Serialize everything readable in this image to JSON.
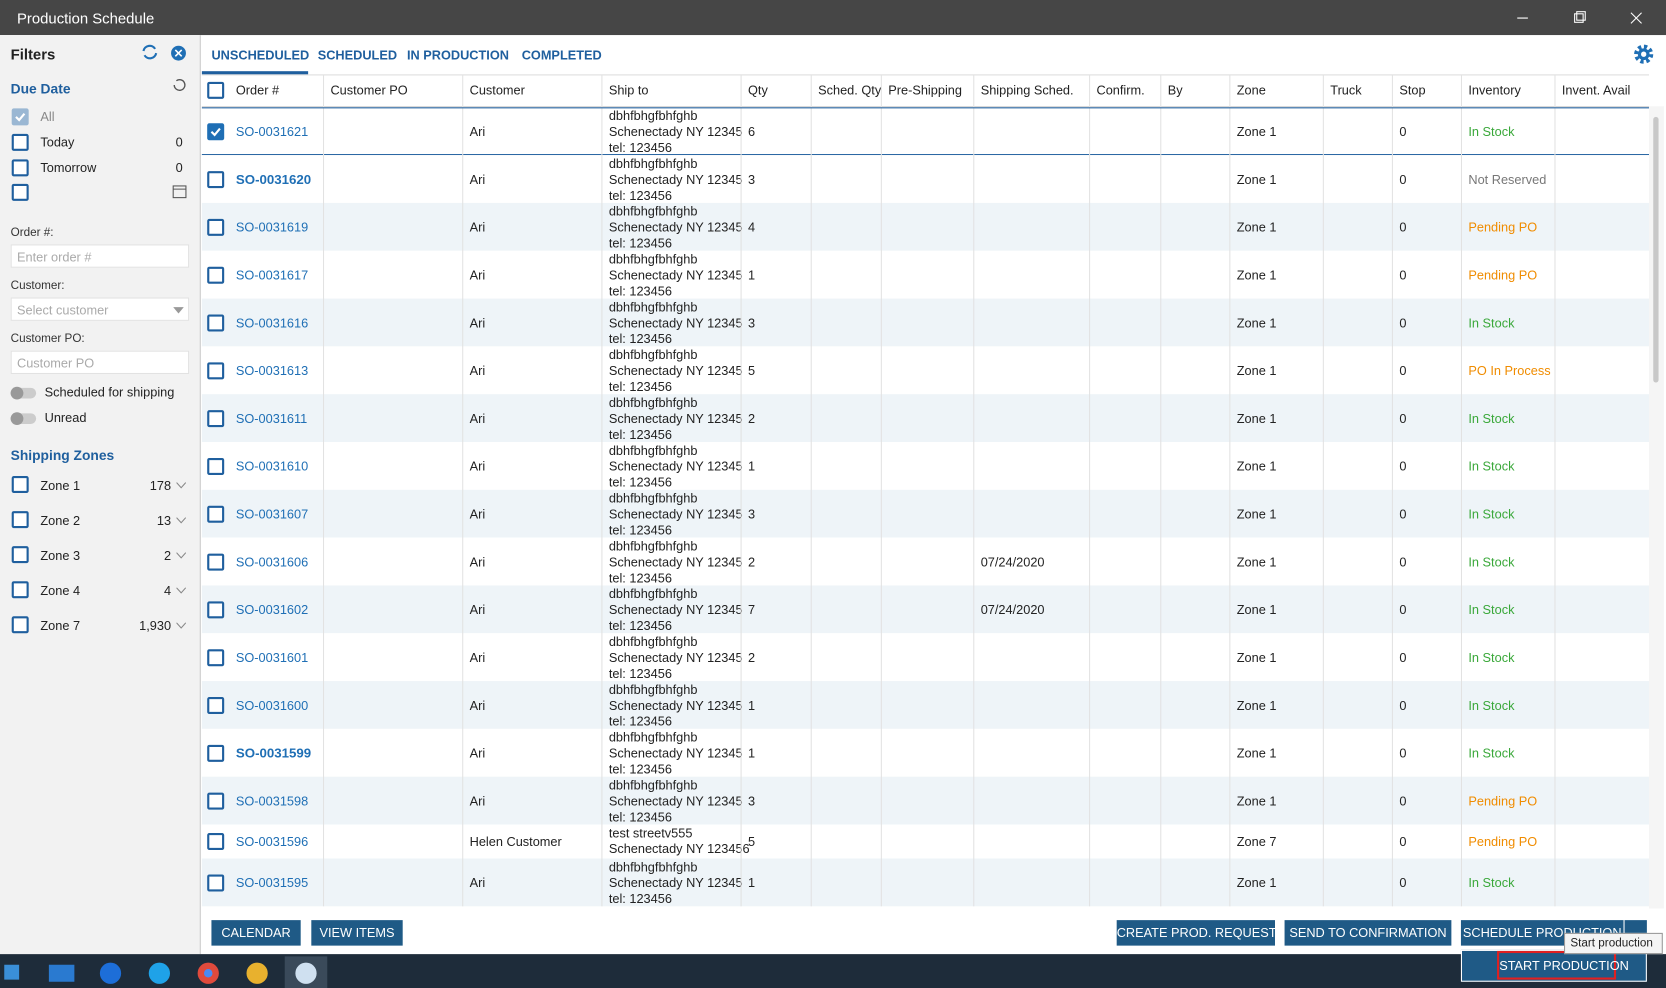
{
  "window": {
    "title": "Production Schedule"
  },
  "filters": {
    "title": "Filters",
    "due_date": {
      "title": "Due Date",
      "options": [
        {
          "label": "All",
          "checked": true
        },
        {
          "label": "Today",
          "count": "0"
        },
        {
          "label": "Tomorrow",
          "count": "0"
        }
      ]
    },
    "order_label": "Order #:",
    "order_placeholder": "Enter order #",
    "customer_label": "Customer:",
    "customer_placeholder": "Select customer",
    "po_label": "Customer PO:",
    "po_placeholder": "Customer PO",
    "toggles": [
      "Scheduled for shipping",
      "Unread"
    ],
    "zones_title": "Shipping Zones",
    "zones": [
      {
        "name": "Zone 1",
        "count": "178"
      },
      {
        "name": "Zone 2",
        "count": "13"
      },
      {
        "name": "Zone 3",
        "count": "2"
      },
      {
        "name": "Zone 4",
        "count": "4"
      },
      {
        "name": "Zone 7",
        "count": "1,930"
      }
    ]
  },
  "tabs": [
    "UNSCHEDULED",
    "SCHEDULED",
    "IN PRODUCTION",
    "COMPLETED"
  ],
  "table": {
    "columns": [
      "Order #",
      "Customer PO",
      "Customer",
      "Ship to",
      "Qty",
      "Sched. Qty",
      "Pre-Shipping",
      "Shipping Sched.",
      "Confirm.",
      "By",
      "Zone",
      "Truck",
      "Stop",
      "Inventory",
      "Invent. Avail"
    ],
    "rows": [
      {
        "order": "SO-0031621",
        "customer": "Ari",
        "ship_to": [
          "dbhfbhgfbhfghb",
          "Schenectady NY 12345",
          "tel: 123456"
        ],
        "qty": "6",
        "zone": "Zone 1",
        "stop": "0",
        "inventory": "In Stock",
        "inventory_color": "#3aa83a",
        "checked": true
      },
      {
        "order": "SO-0031620",
        "customer": "Ari",
        "ship_to": [
          "dbhfbhgfbhfghb",
          "Schenectady NY 12345",
          "tel: 123456"
        ],
        "qty": "3",
        "zone": "Zone 1",
        "stop": "0",
        "inventory": "Not Reserved",
        "inventory_color": "#777777",
        "bold": true
      },
      {
        "order": "SO-0031619",
        "customer": "Ari",
        "ship_to": [
          "dbhfbhgfbhfghb",
          "Schenectady NY 12345",
          "tel: 123456"
        ],
        "qty": "4",
        "zone": "Zone 1",
        "stop": "0",
        "inventory": "Pending PO",
        "inventory_color": "#f08c00"
      },
      {
        "order": "SO-0031617",
        "customer": "Ari",
        "ship_to": [
          "dbhfbhgfbhfghb",
          "Schenectady NY 12345",
          "tel: 123456"
        ],
        "qty": "1",
        "zone": "Zone 1",
        "stop": "0",
        "inventory": "Pending PO",
        "inventory_color": "#f08c00"
      },
      {
        "order": "SO-0031616",
        "customer": "Ari",
        "ship_to": [
          "dbhfbhgfbhfghb",
          "Schenectady NY 12345",
          "tel: 123456"
        ],
        "qty": "3",
        "zone": "Zone 1",
        "stop": "0",
        "inventory": "In Stock",
        "inventory_color": "#3aa83a"
      },
      {
        "order": "SO-0031613",
        "customer": "Ari",
        "ship_to": [
          "dbhfbhgfbhfghb",
          "Schenectady NY 12345",
          "tel: 123456"
        ],
        "qty": "5",
        "zone": "Zone 1",
        "stop": "0",
        "inventory": "PO In Process",
        "inventory_color": "#f08c00"
      },
      {
        "order": "SO-0031611",
        "customer": "Ari",
        "ship_to": [
          "dbhfbhgfbhfghb",
          "Schenectady NY 12345",
          "tel: 123456"
        ],
        "qty": "2",
        "zone": "Zone 1",
        "stop": "0",
        "inventory": "In Stock",
        "inventory_color": "#3aa83a"
      },
      {
        "order": "SO-0031610",
        "customer": "Ari",
        "ship_to": [
          "dbhfbhgfbhfghb",
          "Schenectady NY 12345",
          "tel: 123456"
        ],
        "qty": "1",
        "zone": "Zone 1",
        "stop": "0",
        "inventory": "In Stock",
        "inventory_color": "#3aa83a"
      },
      {
        "order": "SO-0031607",
        "customer": "Ari",
        "ship_to": [
          "dbhfbhgfbhfghb",
          "Schenectady NY 12345",
          "tel: 123456"
        ],
        "qty": "3",
        "zone": "Zone 1",
        "stop": "0",
        "inventory": "In Stock",
        "inventory_color": "#3aa83a"
      },
      {
        "order": "SO-0031606",
        "customer": "Ari",
        "ship_to": [
          "dbhfbhgfbhfghb",
          "Schenectady NY 12345",
          "tel: 123456"
        ],
        "qty": "2",
        "shipping_sched": "07/24/2020",
        "zone": "Zone 1",
        "stop": "0",
        "inventory": "In Stock",
        "inventory_color": "#3aa83a"
      },
      {
        "order": "SO-0031602",
        "customer": "Ari",
        "ship_to": [
          "dbhfbhgfbhfghb",
          "Schenectady NY 12345",
          "tel: 123456"
        ],
        "qty": "7",
        "shipping_sched": "07/24/2020",
        "zone": "Zone 1",
        "stop": "0",
        "inventory": "In Stock",
        "inventory_color": "#3aa83a"
      },
      {
        "order": "SO-0031601",
        "customer": "Ari",
        "ship_to": [
          "dbhfbhgfbhfghb",
          "Schenectady NY 12345",
          "tel: 123456"
        ],
        "qty": "2",
        "zone": "Zone 1",
        "stop": "0",
        "inventory": "In Stock",
        "inventory_color": "#3aa83a"
      },
      {
        "order": "SO-0031600",
        "customer": "Ari",
        "ship_to": [
          "dbhfbhgfbhfghb",
          "Schenectady NY 12345",
          "tel: 123456"
        ],
        "qty": "1",
        "zone": "Zone 1",
        "stop": "0",
        "inventory": "In Stock",
        "inventory_color": "#3aa83a"
      },
      {
        "order": "SO-0031599",
        "customer": "Ari",
        "ship_to": [
          "dbhfbhgfbhfghb",
          "Schenectady NY 12345",
          "tel: 123456"
        ],
        "qty": "1",
        "zone": "Zone 1",
        "stop": "0",
        "inventory": "In Stock",
        "inventory_color": "#3aa83a",
        "bold": true
      },
      {
        "order": "SO-0031598",
        "customer": "Ari",
        "ship_to": [
          "dbhfbhgfbhfghb",
          "Schenectady NY 12345",
          "tel: 123456"
        ],
        "qty": "3",
        "zone": "Zone 1",
        "stop": "0",
        "inventory": "Pending PO",
        "inventory_color": "#f08c00"
      },
      {
        "order": "SO-0031596",
        "customer": "Helen Customer",
        "ship_to": [
          "test streetv555",
          "Schenectady NY 123456"
        ],
        "qty": "5",
        "zone": "Zone 7",
        "stop": "0",
        "inventory": "Pending PO",
        "inventory_color": "#f08c00"
      },
      {
        "order": "SO-0031595",
        "customer": "Ari",
        "ship_to": [
          "dbhfbhgfbhfghb",
          "Schenectady NY 12345",
          "tel: 123456"
        ],
        "qty": "1",
        "zone": "Zone 1",
        "stop": "0",
        "inventory": "In Stock",
        "inventory_color": "#3aa83a"
      }
    ]
  },
  "buttons": {
    "left": [
      "CALENDAR",
      "VIEW ITEMS"
    ],
    "right": [
      "CREATE PROD. REQUEST",
      "SEND TO CONFIRMATION",
      "SCHEDULE PRODUCTION"
    ]
  },
  "tooltip": "Start production",
  "menu_item": "START PRODUCTION"
}
